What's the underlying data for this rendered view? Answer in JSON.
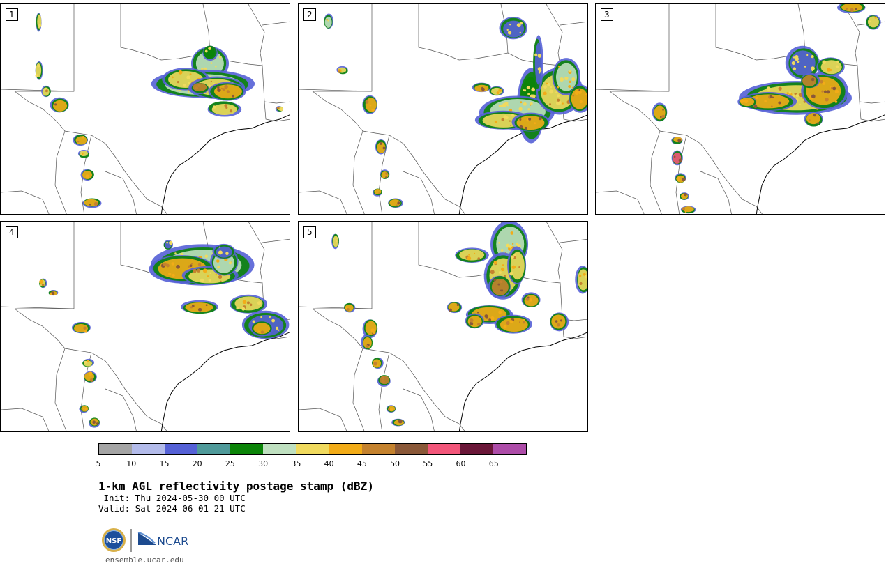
{
  "panels": [
    {
      "label": "1"
    },
    {
      "label": "2"
    },
    {
      "label": "3"
    },
    {
      "label": "4"
    },
    {
      "label": "5"
    }
  ],
  "colorbar": {
    "ticks": [
      "5",
      "10",
      "15",
      "20",
      "25",
      "30",
      "35",
      "40",
      "45",
      "50",
      "55",
      "60",
      "65"
    ],
    "colors": [
      "#a4a4a4",
      "#b3bbea",
      "#5561d6",
      "#4f9a9a",
      "#0b8408",
      "#bfe0c0",
      "#f0da5e",
      "#f2ac18",
      "#c4822e",
      "#8a5838",
      "#f2567a",
      "#6a1738",
      "#ad4ca8"
    ]
  },
  "title": "1-km AGL reflectivity postage stamp (dBZ)",
  "init": " Init: Thu 2024-05-30 00 UTC",
  "valid": "Valid: Sat 2024-06-01 21 UTC",
  "logo": {
    "nsf": "NSF",
    "ncar": "NCAR"
  },
  "website": "ensemble.ucar.edu"
}
